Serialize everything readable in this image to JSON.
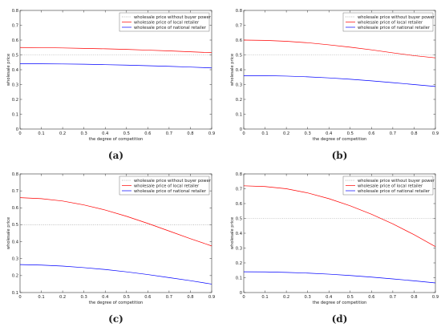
{
  "chart_data": [
    {
      "type": "line",
      "panel_label": "(a)",
      "xlabel": "the degree of competition",
      "ylabel": "wholesale price",
      "xlim": [
        0,
        0.9
      ],
      "ylim": [
        0,
        0.8
      ],
      "xticks": [
        "0",
        "0.1",
        "0.2",
        "0.3",
        "0.4",
        "0.5",
        "0.6",
        "0.7",
        "0.8",
        "0.9"
      ],
      "yticks": [
        "0",
        "0.1",
        "0.2",
        "0.3",
        "0.4",
        "0.5",
        "0.6",
        "0.7",
        "0.8"
      ],
      "grid": false,
      "legend_position": "top-right",
      "x": [
        0,
        0.1,
        0.2,
        0.3,
        0.4,
        0.5,
        0.6,
        0.7,
        0.8,
        0.9
      ],
      "series": [
        {
          "name": "wholesale price without buyer power",
          "color": "#999999",
          "style": "dotted",
          "values": [
            0.5,
            0.5,
            0.5,
            0.5,
            0.5,
            0.5,
            0.5,
            0.5,
            0.5,
            0.5
          ]
        },
        {
          "name": "wholesale price of local retailer",
          "color": "#ff0000",
          "style": "solid",
          "values": [
            0.55,
            0.549,
            0.547,
            0.544,
            0.541,
            0.537,
            0.532,
            0.527,
            0.521,
            0.515
          ]
        },
        {
          "name": "wholesale price of national retailer",
          "color": "#0000ff",
          "style": "solid",
          "values": [
            0.44,
            0.44,
            0.439,
            0.437,
            0.434,
            0.431,
            0.427,
            0.423,
            0.418,
            0.412
          ]
        }
      ]
    },
    {
      "type": "line",
      "panel_label": "(b)",
      "xlabel": "the degree of competition",
      "ylabel": "wholesale price",
      "xlim": [
        0,
        0.9
      ],
      "ylim": [
        0,
        0.8
      ],
      "xticks": [
        "0",
        "0.1",
        "0.2",
        "0.3",
        "0.4",
        "0.5",
        "0.6",
        "0.7",
        "0.8",
        "0.9"
      ],
      "yticks": [
        "0",
        "0.1",
        "0.2",
        "0.3",
        "0.4",
        "0.5",
        "0.6",
        "0.7",
        "0.8"
      ],
      "grid": false,
      "legend_position": "top-right",
      "x": [
        0,
        0.1,
        0.2,
        0.3,
        0.4,
        0.5,
        0.6,
        0.7,
        0.8,
        0.9
      ],
      "series": [
        {
          "name": "wholesale price without buyer power",
          "color": "#999999",
          "style": "dotted",
          "values": [
            0.5,
            0.5,
            0.5,
            0.5,
            0.5,
            0.5,
            0.5,
            0.5,
            0.5,
            0.5
          ]
        },
        {
          "name": "wholesale price of local retailer",
          "color": "#ff0000",
          "style": "solid",
          "values": [
            0.6,
            0.598,
            0.592,
            0.582,
            0.568,
            0.552,
            0.534,
            0.514,
            0.495,
            0.48
          ]
        },
        {
          "name": "wholesale price of national retailer",
          "color": "#0000ff",
          "style": "solid",
          "values": [
            0.36,
            0.36,
            0.357,
            0.352,
            0.345,
            0.336,
            0.325,
            0.313,
            0.3,
            0.287
          ]
        }
      ]
    },
    {
      "type": "line",
      "panel_label": "(c)",
      "xlabel": "the degree of competition",
      "ylabel": "wholesale price",
      "xlim": [
        0,
        0.9
      ],
      "ylim": [
        0.1,
        0.8
      ],
      "xticks": [
        "0",
        "0.1",
        "0.2",
        "0.3",
        "0.4",
        "0.5",
        "0.6",
        "0.7",
        "0.8",
        "0.9"
      ],
      "yticks": [
        "0.1",
        "0.2",
        "0.3",
        "0.4",
        "0.5",
        "0.6",
        "0.7",
        "0.8"
      ],
      "grid": false,
      "legend_position": "top-right",
      "x": [
        0,
        0.1,
        0.2,
        0.3,
        0.4,
        0.5,
        0.6,
        0.7,
        0.8,
        0.9
      ],
      "series": [
        {
          "name": "wholesale price without buyer power",
          "color": "#999999",
          "style": "dotted",
          "values": [
            0.5,
            0.5,
            0.5,
            0.5,
            0.5,
            0.5,
            0.5,
            0.5,
            0.5,
            0.5
          ]
        },
        {
          "name": "wholesale price of local retailer",
          "color": "#ff0000",
          "style": "solid",
          "values": [
            0.66,
            0.654,
            0.64,
            0.617,
            0.587,
            0.55,
            0.508,
            0.463,
            0.418,
            0.375
          ]
        },
        {
          "name": "wholesale price of national retailer",
          "color": "#0000ff",
          "style": "solid",
          "values": [
            0.265,
            0.262,
            0.256,
            0.247,
            0.236,
            0.222,
            0.206,
            0.188,
            0.17,
            0.15
          ]
        }
      ]
    },
    {
      "type": "line",
      "panel_label": "(d)",
      "xlabel": "the degree of competition",
      "ylabel": "wholesale price",
      "xlim": [
        0,
        0.9
      ],
      "ylim": [
        0,
        0.8
      ],
      "xticks": [
        "0",
        "0.1",
        "0.2",
        "0.3",
        "0.4",
        "0.5",
        "0.6",
        "0.7",
        "0.8",
        "0.9"
      ],
      "yticks": [
        "0",
        "0.1",
        "0.2",
        "0.3",
        "0.4",
        "0.5",
        "0.6",
        "0.7",
        "0.8"
      ],
      "grid": false,
      "legend_position": "top-right",
      "x": [
        0,
        0.1,
        0.2,
        0.3,
        0.4,
        0.5,
        0.6,
        0.7,
        0.8,
        0.9
      ],
      "series": [
        {
          "name": "wholesale price without buyer power",
          "color": "#999999",
          "style": "dotted",
          "values": [
            0.5,
            0.5,
            0.5,
            0.5,
            0.5,
            0.5,
            0.5,
            0.5,
            0.5,
            0.5
          ]
        },
        {
          "name": "wholesale price of local retailer",
          "color": "#ff0000",
          "style": "solid",
          "values": [
            0.72,
            0.715,
            0.7,
            0.672,
            0.633,
            0.585,
            0.528,
            0.463,
            0.39,
            0.31
          ]
        },
        {
          "name": "wholesale price of national retailer",
          "color": "#0000ff",
          "style": "solid",
          "values": [
            0.14,
            0.139,
            0.136,
            0.131,
            0.124,
            0.115,
            0.104,
            0.092,
            0.079,
            0.065
          ]
        }
      ]
    }
  ]
}
